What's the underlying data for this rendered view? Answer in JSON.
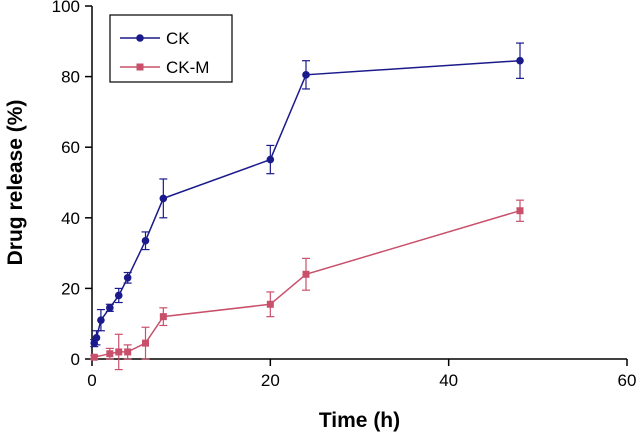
{
  "chart_data": {
    "type": "line",
    "xlabel": "Time (h)",
    "ylabel": "Drug release (%)",
    "xlim": [
      0,
      60
    ],
    "ylim": [
      0,
      100
    ],
    "xticks": [
      0,
      20,
      40,
      60
    ],
    "yticks": [
      0,
      20,
      40,
      60,
      80,
      100
    ],
    "grid": false,
    "legend_position": "top-left",
    "series": [
      {
        "name": "CK",
        "color": "#1a1a8c",
        "marker": "circle",
        "x": [
          0.25,
          0.5,
          1,
          2,
          3,
          4,
          6,
          8,
          20,
          24,
          48
        ],
        "y": [
          4.5,
          6.0,
          11.0,
          14.5,
          18.0,
          23.0,
          33.5,
          45.5,
          56.5,
          80.5,
          84.5
        ],
        "error": [
          1.0,
          2.0,
          3.0,
          1.0,
          2.0,
          1.5,
          2.5,
          5.5,
          4.0,
          4.0,
          5.0
        ]
      },
      {
        "name": "CK-M",
        "color": "#c9506a",
        "marker": "square",
        "x": [
          0.25,
          2,
          3,
          4,
          6,
          8,
          20,
          24,
          48
        ],
        "y": [
          0.5,
          1.5,
          2.0,
          2.0,
          4.5,
          12.0,
          15.5,
          24.0,
          42.0
        ],
        "error": [
          0.5,
          1.5,
          5.0,
          2.0,
          4.5,
          2.5,
          3.5,
          4.5,
          3.0
        ]
      }
    ]
  }
}
